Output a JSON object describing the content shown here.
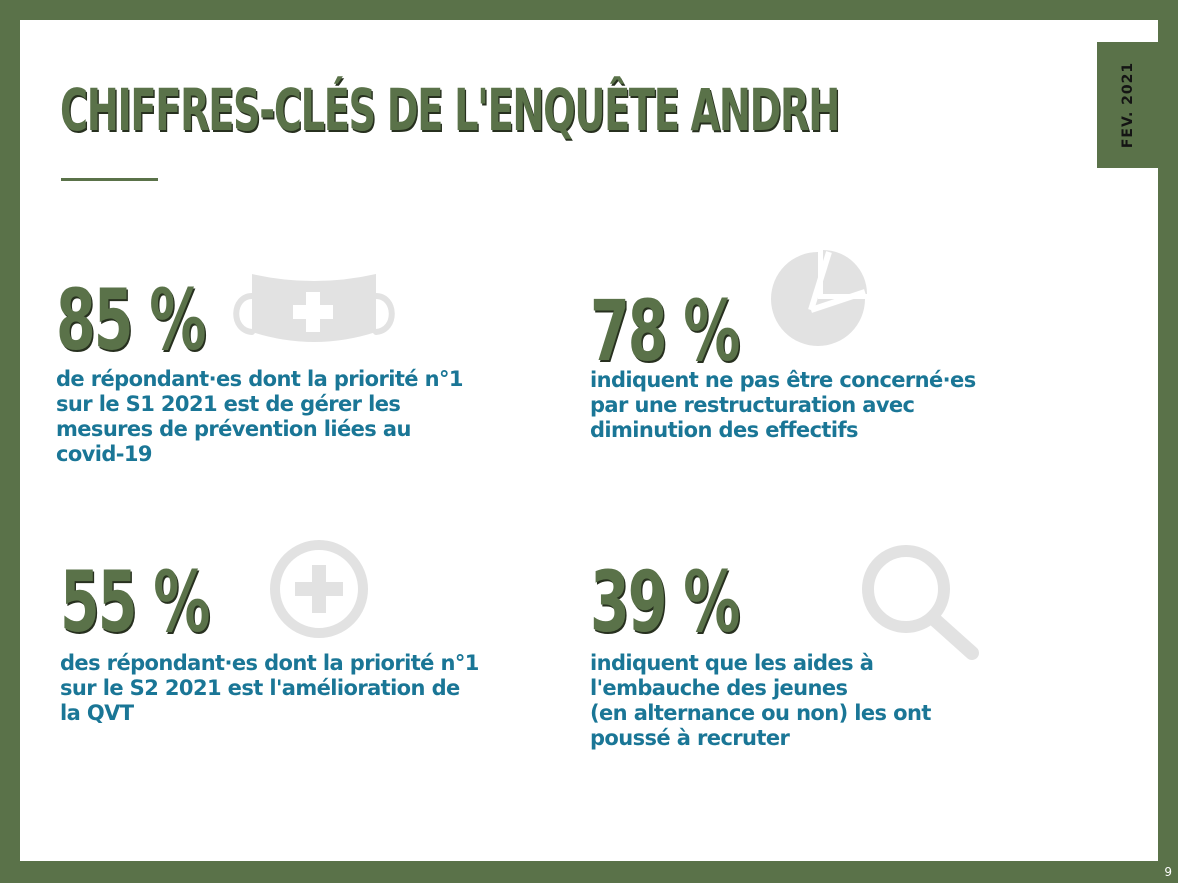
{
  "slide": {
    "title": "CHIFFRES-CLÉS DE L'ENQUÊTE ANDRH",
    "date_label": "FEV.  2021",
    "page_number": "9"
  },
  "colors": {
    "frame_green": "#5a7249",
    "heading_green": "#5a7249",
    "text_blue": "#1a7696",
    "icon_grey": "#e2e2e2"
  },
  "stats": [
    {
      "value": "85 %",
      "description": "de répondant·es dont la priorité n°1\nsur le S1 2021 est de gérer les\nmesures de prévention liées au\ncovid-19",
      "icon": "face-mask-icon"
    },
    {
      "value": "78 %",
      "description": "indiquent ne pas être concerné·es\npar une restructuration avec\ndiminution des effectifs",
      "icon": "pie-chart-icon"
    },
    {
      "value": "55 %",
      "description": "des répondant·es dont la priorité n°1\nsur le S2 2021 est l'amélioration de\nla QVT",
      "icon": "plus-circle-icon"
    },
    {
      "value": "39 %",
      "description": "indiquent que les aides à\nl'embauche des jeunes\n(en alternance ou non) les ont\npoussé à recruter",
      "icon": "magnifier-icon"
    }
  ]
}
